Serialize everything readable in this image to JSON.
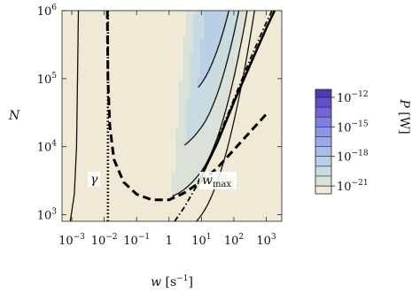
{
  "chart_data": {
    "type": "contour",
    "xlabel": {
      "var": "w",
      "unit": "[s",
      "exp": "−1",
      "close": "]"
    },
    "ylabel": "N",
    "x_scale": "log",
    "y_scale": "log",
    "xlim": [
      0.0005,
      3000
    ],
    "ylim": [
      800,
      1000000
    ],
    "x_ticks": [
      {
        "value": 0.001,
        "base": "10",
        "exp": "−3"
      },
      {
        "value": 0.01,
        "base": "10",
        "exp": "−2"
      },
      {
        "value": 0.1,
        "base": "10",
        "exp": "−1"
      },
      {
        "value": 1,
        "base": "1",
        "exp": ""
      },
      {
        "value": 10,
        "base": "10",
        "exp": "1"
      },
      {
        "value": 100,
        "base": "10",
        "exp": "2"
      },
      {
        "value": 1000,
        "base": "10",
        "exp": "3"
      }
    ],
    "y_ticks": [
      {
        "value": 1000,
        "base": "10",
        "exp": "3"
      },
      {
        "value": 10000,
        "base": "10",
        "exp": "4"
      },
      {
        "value": 100000,
        "base": "10",
        "exp": "5"
      },
      {
        "value": 1000000,
        "base": "10",
        "exp": "6"
      }
    ],
    "colorbar": {
      "label": {
        "var": "P",
        "unit": "[W]"
      },
      "levels_log10": [
        -22,
        -21,
        -20,
        -19,
        -18,
        -17,
        -16,
        -15,
        -14,
        -13,
        -12,
        -11
      ],
      "colors": [
        "#efe9d6",
        "#d9e1d8",
        "#c7dbe0",
        "#b8cfe6",
        "#aabde9",
        "#9ba9ea",
        "#8c95e6",
        "#7e80e0",
        "#7066d8",
        "#604fc9",
        "#5238b5"
      ],
      "ticks": [
        {
          "value": -12,
          "base": "10",
          "exp": "−12"
        },
        {
          "value": -15,
          "base": "10",
          "exp": "−15"
        },
        {
          "value": -18,
          "base": "10",
          "exp": "−18"
        },
        {
          "value": -21,
          "base": "10",
          "exp": "−21"
        }
      ]
    },
    "annotations": [
      {
        "text": "γ",
        "x": 0.003,
        "y": 1800
      },
      {
        "text": "w",
        "sub": "max",
        "x": 8,
        "y": 1900
      }
    ],
    "curves": {
      "gamma_dotted": {
        "x": 0.013,
        "y_range": [
          800,
          1000000
        ]
      },
      "dashed_lower_branch": [
        [
          0.0125,
          1000000
        ],
        [
          0.013,
          100000
        ],
        [
          0.015,
          20000
        ],
        [
          0.02,
          6500
        ],
        [
          0.04,
          3000
        ],
        [
          0.1,
          2000
        ],
        [
          0.3,
          1650
        ],
        [
          1,
          1650
        ],
        [
          3,
          2100
        ],
        [
          10,
          3100
        ],
        [
          30,
          4800
        ],
        [
          100,
          9000
        ],
        [
          300,
          16000
        ],
        [
          1000,
          30000
        ]
      ],
      "dash_dot_wmax": [
        [
          1.5,
          800
        ],
        [
          3,
          1300
        ],
        [
          10,
          3500
        ],
        [
          30,
          12000
        ],
        [
          100,
          50000
        ],
        [
          300,
          180000
        ],
        [
          900,
          600000
        ],
        [
          1500,
          1000000
        ]
      ],
      "thick_boundary": [
        [
          8,
          3000
        ],
        [
          30,
          11000
        ],
        [
          100,
          45000
        ],
        [
          300,
          150000
        ],
        [
          1000,
          550000
        ],
        [
          1800,
          1000000
        ]
      ]
    }
  }
}
